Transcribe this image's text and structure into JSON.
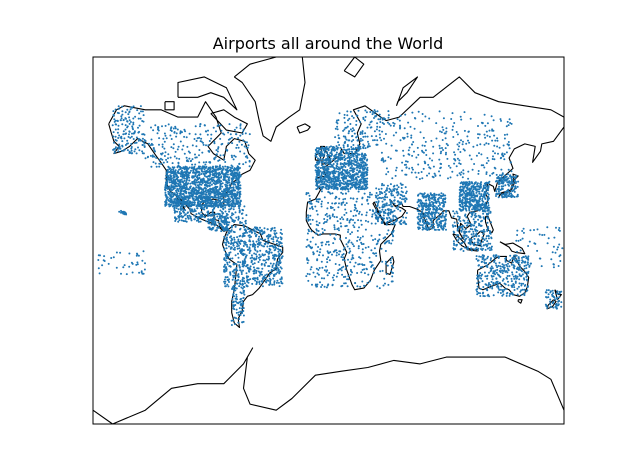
{
  "title": "Airports all around the World",
  "colors": {
    "points": "#1f77b4",
    "coastline": "#000000",
    "frame": "#000000",
    "background": "#ffffff"
  },
  "map": {
    "projection": "mercator",
    "lon_range": [
      -180,
      180
    ],
    "lat_range": [
      -80,
      80
    ],
    "ticks_shown": false
  },
  "chart_data": {
    "type": "scatter",
    "title": "Airports all around the World",
    "xlabel": "",
    "ylabel": "",
    "marker": "dot",
    "density_regions": [
      {
        "lon": [
          -125,
          -67
        ],
        "lat": [
          25,
          49
        ],
        "count": 1400
      },
      {
        "lon": [
          -165,
          -140
        ],
        "lat": [
          55,
          71
        ],
        "count": 160
      },
      {
        "lon": [
          -140,
          -60
        ],
        "lat": [
          48,
          66
        ],
        "count": 260
      },
      {
        "lon": [
          -118,
          -87
        ],
        "lat": [
          14,
          32
        ],
        "count": 230
      },
      {
        "lon": [
          -92,
          -77
        ],
        "lat": [
          7,
          20
        ],
        "count": 90
      },
      {
        "lon": [
          -85,
          -62
        ],
        "lat": [
          10,
          26
        ],
        "count": 80
      },
      {
        "lon": [
          -80,
          -35
        ],
        "lat": [
          -33,
          10
        ],
        "count": 620
      },
      {
        "lon": [
          -75,
          -64
        ],
        "lat": [
          -54,
          -33
        ],
        "count": 80
      },
      {
        "lon": [
          -10,
          30
        ],
        "lat": [
          36,
          58
        ],
        "count": 900
      },
      {
        "lon": [
          5,
          40
        ],
        "lat": [
          58,
          70
        ],
        "count": 130
      },
      {
        "lon": [
          -17,
          50
        ],
        "lat": [
          -34,
          35
        ],
        "count": 480
      },
      {
        "lon": [
          36,
          60
        ],
        "lat": [
          12,
          40
        ],
        "count": 180
      },
      {
        "lon": [
          40,
          140
        ],
        "lat": [
          42,
          70
        ],
        "count": 320
      },
      {
        "lon": [
          68,
          90
        ],
        "lat": [
          8,
          34
        ],
        "count": 360
      },
      {
        "lon": [
          100,
          123
        ],
        "lat": [
          22,
          41
        ],
        "count": 380
      },
      {
        "lon": [
          128,
          145
        ],
        "lat": [
          31,
          45
        ],
        "count": 150
      },
      {
        "lon": [
          95,
          125
        ],
        "lat": [
          -8,
          22
        ],
        "count": 250
      },
      {
        "lon": [
          113,
          153
        ],
        "lat": [
          -39,
          -11
        ],
        "count": 320
      },
      {
        "lon": [
          166,
          178
        ],
        "lat": [
          -46,
          -35
        ],
        "count": 60
      },
      {
        "lon": [
          -160,
          -154
        ],
        "lat": [
          19,
          22
        ],
        "count": 18
      },
      {
        "lon": [
          -176,
          -140
        ],
        "lat": [
          -25,
          -8
        ],
        "count": 40
      },
      {
        "lon": [
          140,
          180
        ],
        "lat": [
          -20,
          10
        ],
        "count": 60
      }
    ]
  }
}
